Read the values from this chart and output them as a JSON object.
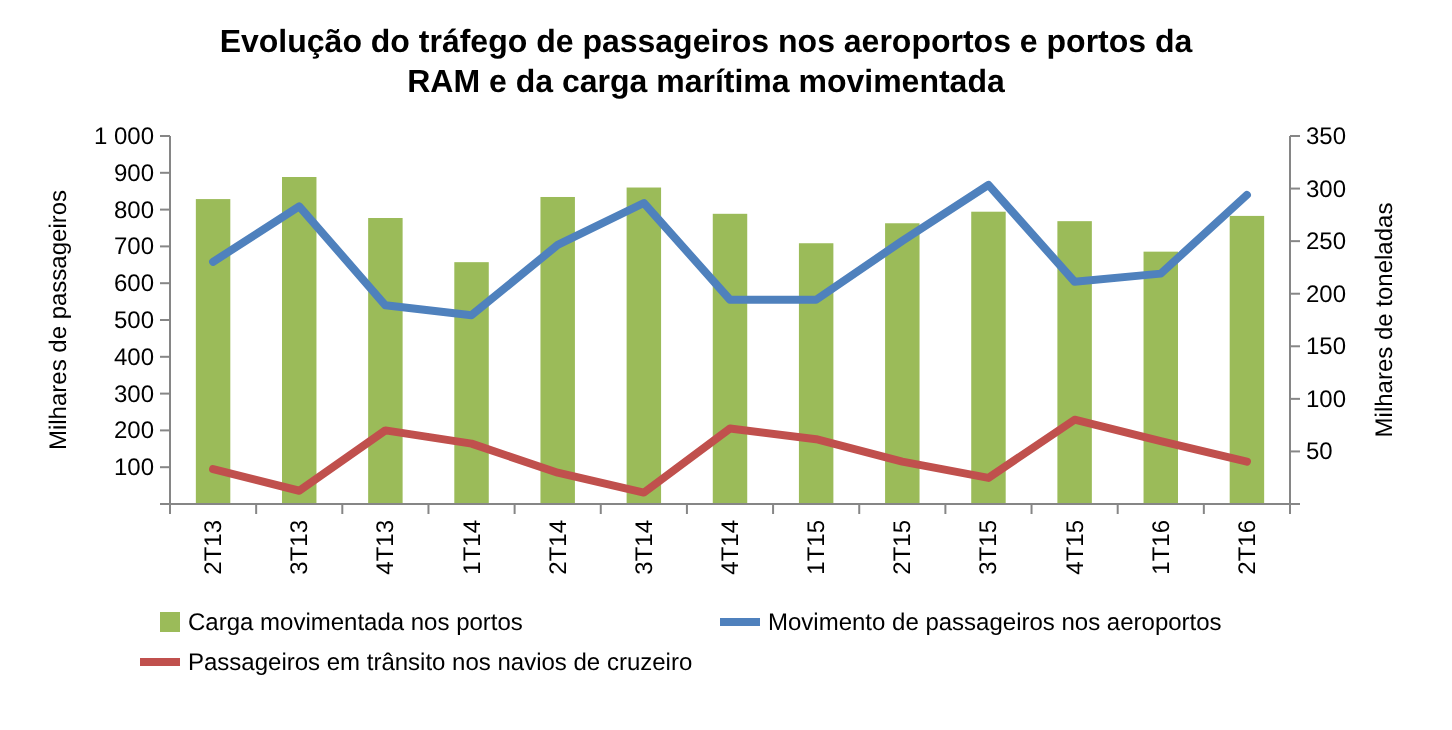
{
  "chart_data": {
    "type": "bar",
    "title": "Evolução do tráfego de passageiros nos aeroportos e portos da RAM e da carga marítima movimentada",
    "ylabel": "Milhares de passageiros",
    "y2label": "Milhares de toneladas",
    "categories": [
      "2T13",
      "3T13",
      "4T13",
      "1T14",
      "2T14",
      "3T14",
      "4T14",
      "1T15",
      "2T15",
      "3T15",
      "4T15",
      "1T16",
      "2T16"
    ],
    "series": [
      {
        "name": "Carga movimentada nos portos",
        "axis": "y2",
        "color": "#9bbb59",
        "values": [
          290,
          311,
          272,
          230,
          292,
          301,
          276,
          248,
          267,
          278,
          269,
          240,
          274
        ]
      },
      {
        "name": "Movimento de passageiros nos aeroportos",
        "type": "line",
        "color": "#4f81bd",
        "values": [
          658,
          809,
          540,
          513,
          704,
          818,
          555,
          555,
          715,
          867,
          604,
          626,
          840
        ]
      },
      {
        "name": "Passageiros em trânsito nos navios de cruzeiro",
        "type": "line",
        "color": "#c0504d",
        "values": [
          95,
          36,
          200,
          164,
          85,
          31,
          205,
          176,
          115,
          71,
          229,
          171,
          115
        ]
      }
    ],
    "ylim": [
      0,
      1000
    ],
    "yticks": [
      {
        "value": 0,
        "label": null
      },
      100,
      200,
      300,
      400,
      500,
      600,
      700,
      800,
      900,
      {
        "value": 1000,
        "label": "1 000"
      }
    ],
    "y2lim": [
      0,
      350
    ],
    "y2ticks": [
      {
        "value": 0,
        "label": null
      },
      50,
      100,
      150,
      200,
      250,
      300,
      350
    ],
    "grid": false,
    "legend": "bottom",
    "marker": "none",
    "line_style": "solid"
  }
}
